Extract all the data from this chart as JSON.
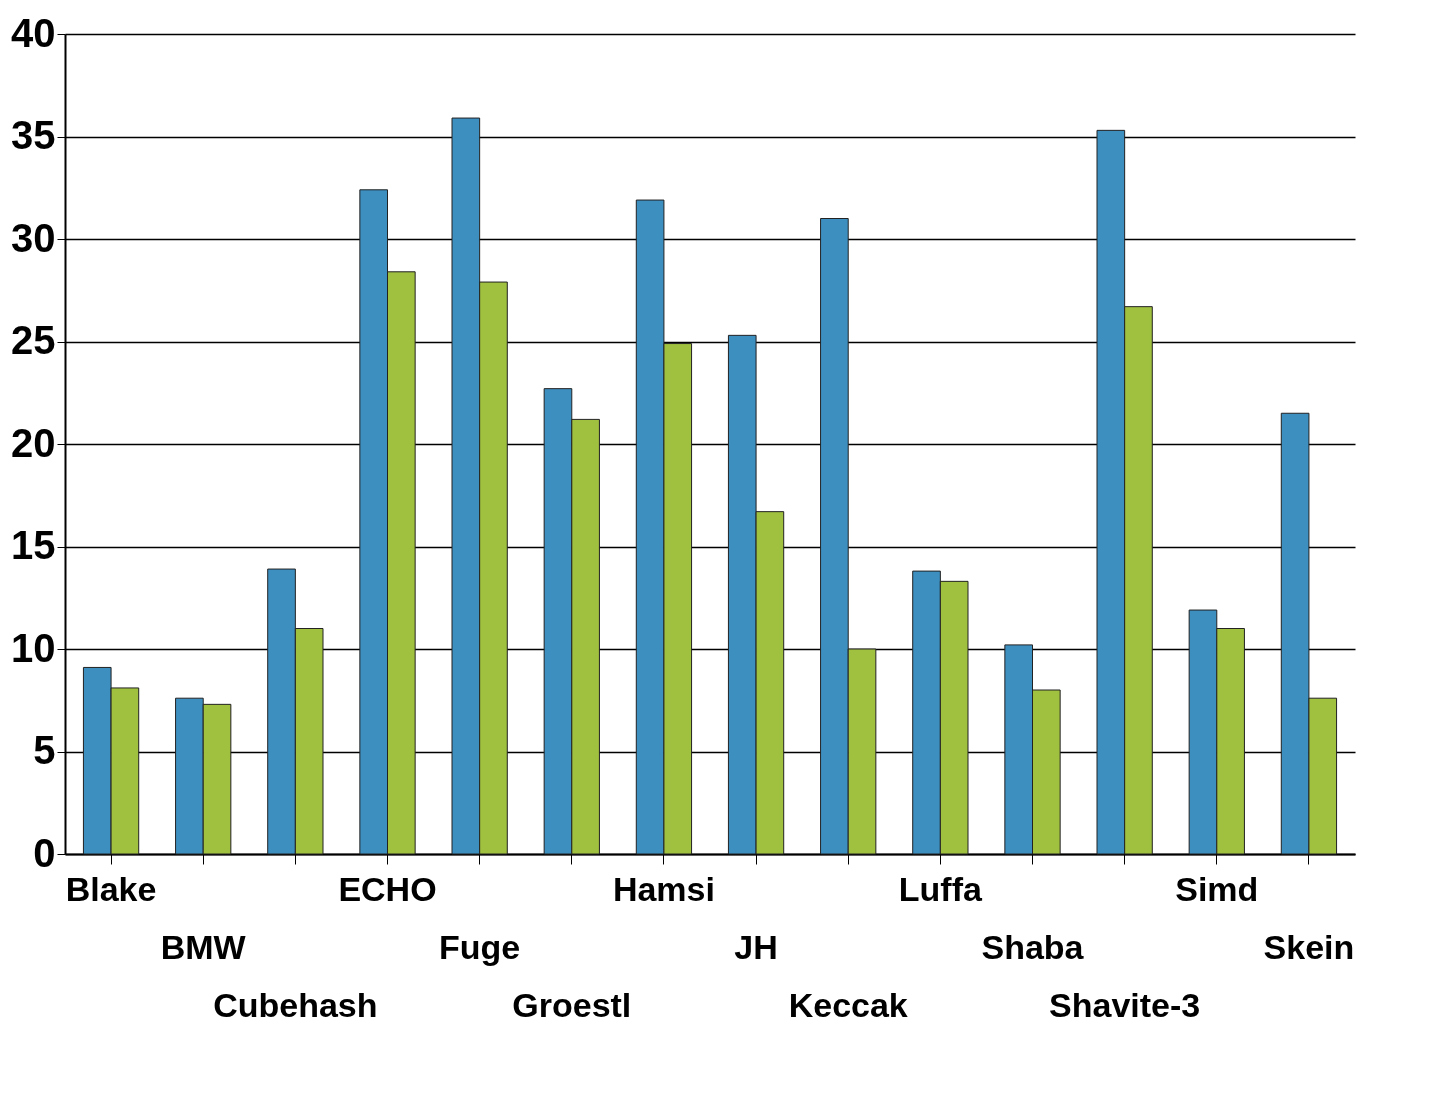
{
  "chart_data": {
    "type": "bar",
    "categories": [
      "Blake",
      "BMW",
      "Cubehash",
      "ECHO",
      "Fuge",
      "Groestl",
      "Hamsi",
      "JH",
      "Keccak",
      "Luffa",
      "Shaba",
      "Shavite-3",
      "Simd",
      "Skein"
    ],
    "series": [
      {
        "color": "#3d8fc0",
        "values": [
          9.1,
          7.6,
          13.9,
          32.4,
          35.9,
          22.7,
          31.9,
          25.3,
          31.0,
          13.8,
          10.2,
          35.3,
          11.9,
          21.5
        ]
      },
      {
        "color": "#a0c040",
        "values": [
          8.1,
          7.3,
          11.0,
          28.4,
          27.9,
          21.2,
          24.9,
          16.7,
          10.0,
          13.3,
          8.0,
          26.7,
          11.0,
          7.6
        ]
      }
    ],
    "ylim": [
      0,
      40
    ],
    "yticks": [
      0,
      5,
      10,
      15,
      20,
      25,
      30,
      35,
      40
    ],
    "grid": "y",
    "legend": false
  }
}
